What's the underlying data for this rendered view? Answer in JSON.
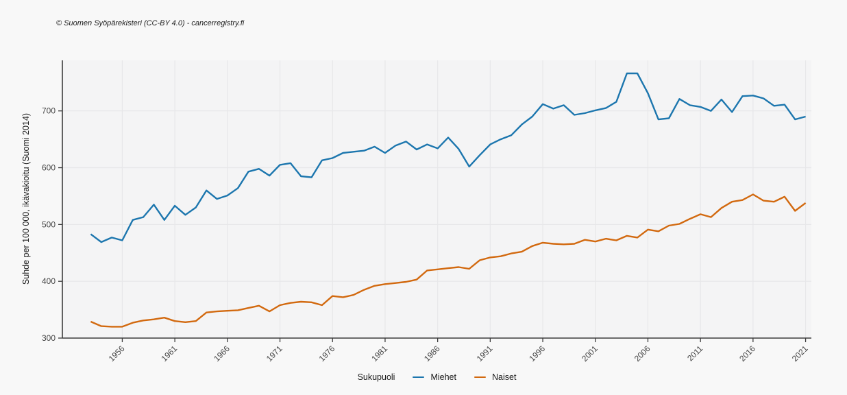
{
  "header": {
    "copyright": "© Suomen Syöpärekisteri (CC-BY 4.0) - cancerregistry.fi"
  },
  "chart_data": {
    "type": "line",
    "ylabel": "Suhde per 100 000, ikävakioitu (Suomi 2014)",
    "legend_title": "Sukupuoli",
    "legend_position": "bottom",
    "grid": true,
    "x_ticks": [
      1956,
      1961,
      1966,
      1971,
      1976,
      1981,
      1986,
      1991,
      1996,
      2001,
      2006,
      2011,
      2016,
      2021
    ],
    "y_ticks": [
      300,
      400,
      500,
      600,
      700
    ],
    "x_domain": [
      1950.3,
      2021.55
    ],
    "y_domain": [
      300,
      789
    ],
    "years": [
      1953,
      1954,
      1955,
      1956,
      1957,
      1958,
      1959,
      1960,
      1961,
      1962,
      1963,
      1964,
      1965,
      1966,
      1967,
      1968,
      1969,
      1970,
      1971,
      1972,
      1973,
      1974,
      1975,
      1976,
      1977,
      1978,
      1979,
      1980,
      1981,
      1982,
      1983,
      1984,
      1985,
      1986,
      1987,
      1988,
      1989,
      1990,
      1991,
      1992,
      1993,
      1994,
      1995,
      1996,
      1997,
      1998,
      1999,
      2000,
      2001,
      2002,
      2003,
      2004,
      2005,
      2006,
      2007,
      2008,
      2009,
      2010,
      2011,
      2012,
      2013,
      2014,
      2015,
      2016,
      2017,
      2018,
      2019,
      2020,
      2021
    ],
    "series": [
      {
        "name": "Miehet",
        "color": "#1c76ae",
        "values": [
          483,
          469,
          477,
          472,
          508,
          513,
          535,
          508,
          533,
          517,
          530,
          560,
          545,
          551,
          564,
          593,
          598,
          586,
          605,
          608,
          585,
          583,
          613,
          617,
          626,
          628,
          630,
          637,
          626,
          639,
          646,
          632,
          641,
          634,
          653,
          633,
          602,
          622,
          641,
          650,
          657,
          676,
          690,
          712,
          704,
          710,
          693,
          696,
          701,
          705,
          716,
          766,
          766,
          731,
          685,
          687,
          721,
          710,
          707,
          700,
          720,
          698,
          726,
          727,
          722,
          709,
          711,
          685,
          690
        ]
      },
      {
        "name": "Naiset",
        "color": "#d2690f",
        "values": [
          329,
          321,
          320,
          320,
          327,
          331,
          333,
          336,
          330,
          328,
          330,
          345,
          347,
          348,
          349,
          353,
          357,
          347,
          358,
          362,
          364,
          363,
          358,
          374,
          372,
          376,
          385,
          392,
          395,
          397,
          399,
          403,
          419,
          421,
          423,
          425,
          422,
          437,
          442,
          444,
          449,
          452,
          462,
          468,
          466,
          465,
          466,
          473,
          470,
          475,
          472,
          480,
          477,
          491,
          488,
          498,
          501,
          510,
          518,
          513,
          529,
          540,
          543,
          553,
          542,
          540,
          549,
          524,
          538
        ]
      }
    ]
  }
}
